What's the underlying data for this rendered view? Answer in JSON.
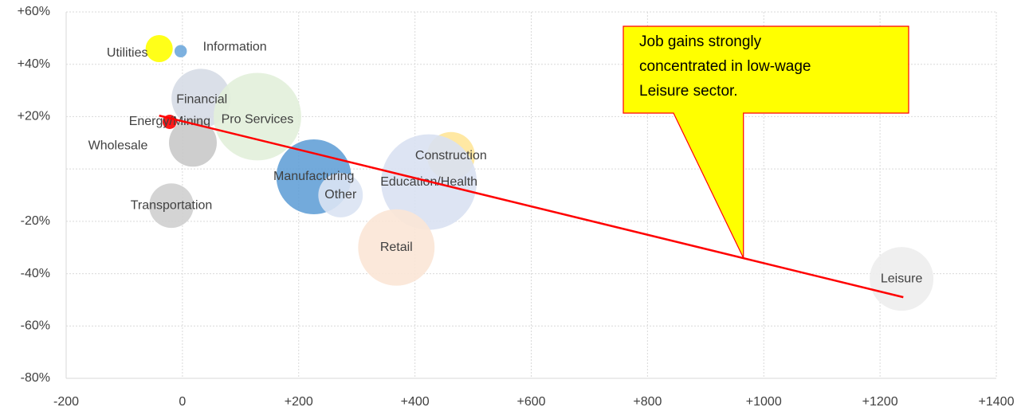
{
  "chart_data": {
    "type": "bubble",
    "series": [
      {
        "name": "Utilities",
        "color": "#ffff00",
        "x": -40,
        "y": 46,
        "size": 29
      },
      {
        "name": "Information",
        "color": "#6fa8dc",
        "x": -3,
        "y": 45,
        "size": 6
      },
      {
        "name": "Financial",
        "color": "#d6dce5",
        "x": 32,
        "y": 27,
        "size": 137
      },
      {
        "name": "Pro Services",
        "color": "#e2efda",
        "x": 129,
        "y": 20,
        "size": 302
      },
      {
        "name": "Energy/Mining",
        "color": "#ff0000",
        "x": -22,
        "y": 18,
        "size": 8
      },
      {
        "name": "Wholesale",
        "color": "#c9c9c9",
        "x": 18,
        "y": 10,
        "size": 90
      },
      {
        "name": "Transportation",
        "color": "#cfcfcf",
        "x": -19,
        "y": -14,
        "size": 78
      },
      {
        "name": "Construction",
        "color": "#ffe699",
        "x": 462,
        "y": 5,
        "size": 90
      },
      {
        "name": "Manufacturing",
        "color": "#5b9bd5",
        "x": 226,
        "y": -3,
        "size": 221
      },
      {
        "name": "Other",
        "color": "#dae3f3",
        "x": 272,
        "y": -10,
        "size": 78
      },
      {
        "name": "Education/Health",
        "color": "#d9e1f2",
        "x": 424,
        "y": -5,
        "size": 360
      },
      {
        "name": "Retail",
        "color": "#fbe5d6",
        "x": 368,
        "y": -30,
        "size": 230
      },
      {
        "name": "Leisure",
        "color": "#ededed",
        "x": 1237,
        "y": -42,
        "size": 160
      }
    ],
    "trendline": {
      "color": "#ff0000",
      "x": [
        -40,
        1240
      ],
      "y": [
        20.4,
        -49
      ]
    },
    "annotation": {
      "lines": [
        "Job gains strongly",
        "concentrated in low-wage",
        "Leisure sector."
      ],
      "x": 965,
      "y": -34
    },
    "xlim": [
      -200,
      1400
    ],
    "ylim": [
      -80,
      60
    ],
    "xticks": [
      -200,
      0,
      {
        "value": 200,
        "label": "+200"
      },
      {
        "value": 400,
        "label": "+400"
      },
      {
        "value": 600,
        "label": "+600"
      },
      {
        "value": 800,
        "label": "+800"
      },
      {
        "value": 1000,
        "label": "+1000"
      },
      {
        "value": 1200,
        "label": "+1200"
      },
      {
        "value": 1400,
        "label": "+1400"
      }
    ],
    "yticks": [
      {
        "value": -80,
        "label": "-80%"
      },
      {
        "value": -60,
        "label": "-60%"
      },
      {
        "value": -40,
        "label": "-40%"
      },
      {
        "value": -20,
        "label": "-20%"
      },
      {
        "value": 0,
        "label": null
      },
      {
        "value": 20,
        "label": "+20%"
      },
      {
        "value": 40,
        "label": "+40%"
      },
      {
        "value": 60,
        "label": "+60%"
      }
    ],
    "grid": true
  }
}
